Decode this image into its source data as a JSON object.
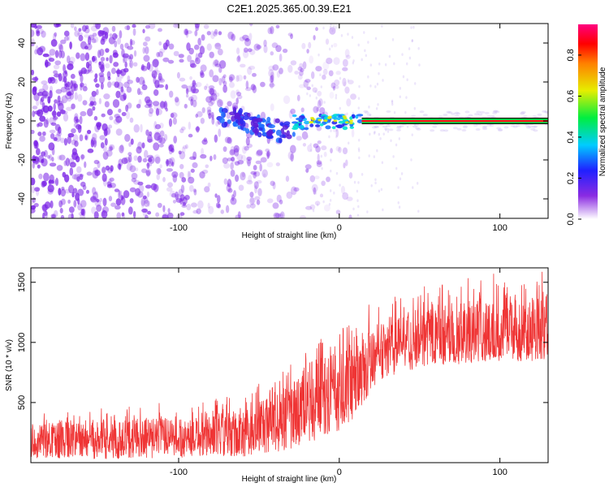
{
  "figure_title": "C2E1.2025.365.00.39.E21",
  "colors": {
    "spectrogram_noise": "#7a22e6",
    "snr_line": "#ef3535",
    "axes": "#000000"
  },
  "chart_data": [
    {
      "type": "heatmap",
      "title": "C2E1.2025.365.00.39.E21",
      "xlabel": "Height of straight line (km)",
      "ylabel": "Frequency (Hz)",
      "xlim": [
        -192,
        130
      ],
      "ylim": [
        -50,
        50
      ],
      "xticks": [
        -100,
        0,
        100
      ],
      "yticks": [
        -40,
        -20,
        0,
        20,
        40
      ],
      "xtick_labels": [
        "-100",
        "0",
        "100"
      ],
      "ytick_labels": [
        "-40",
        "-20",
        "0",
        "20",
        "40"
      ],
      "colorbar": {
        "label": "Normalized spectral amplitude",
        "range": [
          0,
          0.95
        ],
        "ticks": [
          0.0,
          0.2,
          0.4,
          0.6,
          0.8
        ],
        "tick_labels": [
          "0.0",
          "0.2",
          "0.4",
          "0.6",
          "0.8"
        ],
        "colormap": "rainbow (white-purple-blue-cyan-green-yellow-red-magenta)"
      },
      "features": {
        "noise_region_km": [
          -192,
          -20
        ],
        "scattered_signal_km": [
          -75,
          -28
        ],
        "scattered_signal_freq_hz": [
          -12,
          6
        ],
        "rising_signal_km": [
          -28,
          14
        ],
        "rising_signal_freq_hz": [
          -4,
          3
        ],
        "steady_line_km": [
          14,
          130
        ],
        "steady_line_freq_hz": 0,
        "steady_line_amplitude": 0.92
      }
    },
    {
      "type": "line",
      "xlabel": "Height of straight line (km)",
      "ylabel": "SNR (10 * v/v)",
      "xlim": [
        -192,
        130
      ],
      "ylim": [
        0,
        1620
      ],
      "xticks": [
        -100,
        0,
        100
      ],
      "yticks": [
        500,
        1000,
        1500
      ],
      "xtick_labels": [
        "-100",
        "0",
        "100"
      ],
      "ytick_labels": [
        "500",
        "1000",
        "1500"
      ],
      "series": [
        {
          "name": "SNR",
          "envelope": {
            "x": [
              -192,
              -150,
              -100,
              -60,
              -40,
              -20,
              -10,
              0,
              10,
              20,
              30,
              50,
              80,
              100,
              130
            ],
            "lower": [
              40,
              30,
              40,
              50,
              80,
              150,
              220,
              250,
              380,
              600,
              720,
              780,
              820,
              840,
              850
            ],
            "upper": [
              400,
              420,
              470,
              520,
              700,
              880,
              1000,
              1100,
              1200,
              1280,
              1320,
              1400,
              1480,
              1550,
              1580
            ],
            "median": [
              180,
              175,
              200,
              240,
              330,
              450,
              560,
              650,
              780,
              900,
              960,
              1020,
              1060,
              1080,
              1100
            ]
          }
        }
      ]
    }
  ]
}
